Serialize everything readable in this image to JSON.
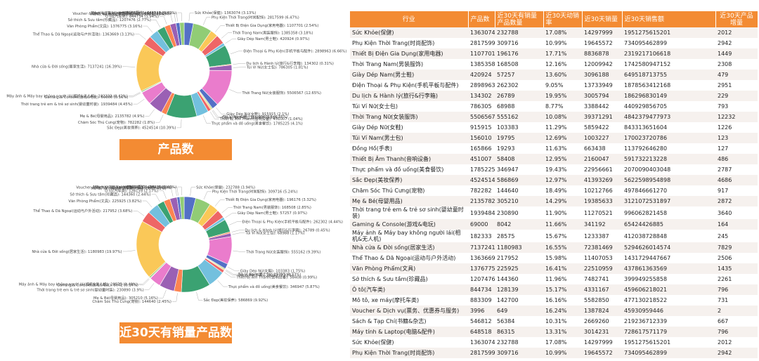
{
  "colors": [
    "#5470C6",
    "#91CC75",
    "#FAC858",
    "#EE6666",
    "#73C0DE",
    "#3BA272",
    "#FC8452",
    "#9A60B4",
    "#EA7CCC"
  ],
  "banners": {
    "chart1": "产品数",
    "chart2": "近30天有销量产品数"
  },
  "chart_data": [
    {
      "type": "pie",
      "title": "产品数",
      "slices": [
        {
          "label": "Sức Khỏe(保健)",
          "value": 1363074,
          "pct": "3.13%"
        },
        {
          "label": "Phụ Kiện Thời Trang(时尚配饰)",
          "value": 2817599,
          "pct": "6.47%"
        },
        {
          "label": "Thiết Bị Điện Gia Dụng(家用电器)",
          "value": 1107701,
          "pct": "2.54%"
        },
        {
          "label": "Thời Trang Nam(男装服饰)",
          "value": 1385358,
          "pct": "3.18%"
        },
        {
          "label": "Giày Dép Nam(男士鞋)",
          "value": 420924,
          "pct": "0.97%"
        },
        {
          "label": "Điện Thoại & Phụ Kiện(手机平板与配件)",
          "value": 2898963,
          "pct": "6.66%"
        },
        {
          "label": "Du lịch & Hành lý(旅行&行李箱)",
          "value": 134302,
          "pct": "0.31%"
        },
        {
          "label": "Túi Ví Nữ(女士包)",
          "value": 786305,
          "pct": "1.81%"
        },
        {
          "label": "Thời Trang Nữ(女装服饰)",
          "value": 5506567,
          "pct": "12.65%"
        },
        {
          "label": "Giày Dép Nữ(女鞋)",
          "value": 915915,
          "pct": "2.1%"
        },
        {
          "label": "Túi Ví Nam(男士包)",
          "value": 156010,
          "pct": "0.36%"
        },
        {
          "label": "Đồng Hồ(手表)",
          "value": 165866,
          "pct": "0.38%"
        },
        {
          "label": "Thiết Bị Âm Thanh(音响设备)",
          "value": 451007,
          "pct": "1.04%"
        },
        {
          "label": "Thực phẩm và đồ uống(美食餐饮)",
          "value": 1785225,
          "pct": "4.1%"
        },
        {
          "label": "Sắc Đẹp(美妆保养)",
          "value": 4524514,
          "pct": "10.39%"
        },
        {
          "label": "Chăm Sóc Thú Cưng(宠物)",
          "value": 782282,
          "pct": "1.8%"
        },
        {
          "label": "Mẹ & Bé(母婴用品)",
          "value": 2135782,
          "pct": "4.9%"
        },
        {
          "label": "Thời trang trẻ em & trẻ sơ sinh(婴幼童时装)",
          "value": 1939484,
          "pct": "4.45%"
        },
        {
          "label": "Gaming & Console(游戏&电玩)",
          "value": 69000,
          "pct": "0.16%"
        },
        {
          "label": "Máy ảnh & Máy bay không người lái(相机&无人机)",
          "value": 182333,
          "pct": "0.42%"
        },
        {
          "label": "Nhà cửa & Đời sống(居家生活)",
          "value": 7137241,
          "pct": "16.39%"
        },
        {
          "label": "Thể Thao & Dã Ngoại(运动与户外活动)",
          "value": 1363669,
          "pct": "3.13%"
        },
        {
          "label": "Văn Phòng Phẩm(文具)",
          "value": 1376775,
          "pct": "3.16%"
        },
        {
          "label": "Sở thích & Sưu tầm(珍藏品)",
          "value": 1207476,
          "pct": "2.77%"
        },
        {
          "label": "Ô tô(汽车类)",
          "value": 844734,
          "pct": "1.94%"
        },
        {
          "label": "Mô tô, xe máy(摩托车类)",
          "value": 883309,
          "pct": "2.03%"
        },
        {
          "label": "Voucher & Dịch vụ(票务、优惠券与服务)",
          "value": 3996,
          "pct": "0.01%"
        },
        {
          "label": "Sách & Tạp Chí(书籍&杂志)",
          "value": 546812,
          "pct": "1.26%"
        },
        {
          "label": "Máy tính & Laptop(电脑&配件)",
          "value": 648518,
          "pct": "1.49%"
        }
      ]
    },
    {
      "type": "pie",
      "title": "近30天有销量产品数",
      "slices": [
        {
          "label": "Sức Khỏe(保健)",
          "value": 232788,
          "pct": "3.94%"
        },
        {
          "label": "Phụ Kiện Thời Trang(时尚配饰)",
          "value": 309716,
          "pct": "5.24%"
        },
        {
          "label": "Thiết Bị Điện Gia Dụng(家用电器)",
          "value": 196176,
          "pct": "3.32%"
        },
        {
          "label": "Thời Trang Nam(男装服饰)",
          "value": 168508,
          "pct": "2.85%"
        },
        {
          "label": "Giày Dép Nam(男士鞋)",
          "value": 57257,
          "pct": "0.97%"
        },
        {
          "label": "Điện Thoại & Phụ Kiện(手机平板与配件)",
          "value": 262302,
          "pct": "4.44%"
        },
        {
          "label": "Du lịch & Hành lý(旅行&行李箱)",
          "value": 26789,
          "pct": "0.45%"
        },
        {
          "label": "Túi Ví Nữ(女士包)",
          "value": 68988,
          "pct": "1.17%"
        },
        {
          "label": "Thời Trang Nữ(女装服饰)",
          "value": 555162,
          "pct": "9.39%"
        },
        {
          "label": "Giày Dép Nữ(女鞋)",
          "value": 103383,
          "pct": "1.75%"
        },
        {
          "label": "Túi Ví Nam(男士包)",
          "value": 19795,
          "pct": "0.33%"
        },
        {
          "label": "Đồng Hồ(手表)",
          "value": 19293,
          "pct": "0.33%"
        },
        {
          "label": "Thiết Bị Âm Thanh(音响设备)",
          "value": 58408,
          "pct": "0.99%"
        },
        {
          "label": "Thực phẩm và đồ uống(美食餐饮)",
          "value": 346947,
          "pct": "5.87%"
        },
        {
          "label": "Sắc Đẹp(美妆保养)",
          "value": 586869,
          "pct": "9.92%"
        },
        {
          "label": "Chăm Sóc Thú Cưng(宠物)",
          "value": 144640,
          "pct": "2.45%"
        },
        {
          "label": "Mẹ & Bé(母婴用品)",
          "value": 305210,
          "pct": "5.16%"
        },
        {
          "label": "Thời trang trẻ em & trẻ sơ sinh(婴幼童时装)",
          "value": 230890,
          "pct": "3.9%"
        },
        {
          "label": "Gaming & Console(游戏&电玩)",
          "value": 8042,
          "pct": "0.14%"
        },
        {
          "label": "Máy ảnh & Máy bay không người lái(相机&无人机)",
          "value": 28575,
          "pct": "0.48%"
        },
        {
          "label": "Nhà cửa & Đời sống(居家生活)",
          "value": 1180983,
          "pct": "19.97%"
        },
        {
          "label": "Thể Thao & Dã Ngoại(运动与户外活动)",
          "value": 217952,
          "pct": "3.68%"
        },
        {
          "label": "Văn Phòng Phẩm(文具)",
          "value": 225925,
          "pct": "3.82%"
        },
        {
          "label": "Sở thích & Sưu tầm(珍藏品)",
          "value": 144360,
          "pct": "2.44%"
        },
        {
          "label": "Ô tô(汽车类)",
          "value": 128139,
          "pct": "2.17%"
        },
        {
          "label": "Mô tô, xe máy(摩托车类)",
          "value": 142700,
          "pct": "2.41%"
        },
        {
          "label": "Voucher & Dịch vụ(票务、优惠券与服务)",
          "value": 649,
          "pct": "0.01%"
        },
        {
          "label": "Sách & Tạp Chí(书籍&杂志)",
          "value": 56384,
          "pct": "0.95%"
        },
        {
          "label": "Máy tính & Laptop(电脑&配件)",
          "value": 86315,
          "pct": "1.46%"
        }
      ]
    },
    {
      "type": "table",
      "columns": [
        "行业",
        "产品数",
        "近30天有销量产品数量",
        "近30天动销率",
        "近30天销量",
        "近30天销售额",
        "近30天产品增量"
      ],
      "rows": [
        [
          "Sức Khỏe(保健)",
          "1363074",
          "232788",
          "17.08%",
          "14297999",
          "1951275615201",
          "2012"
        ],
        [
          "Phụ Kiện Thời Trang(时尚配饰)",
          "2817599",
          "309716",
          "10.99%",
          "19645572",
          "734095462899",
          "2942"
        ],
        [
          "Thiết Bị Điện Gia Dụng(家用电器)",
          "1107701",
          "196176",
          "17.71%",
          "8836878",
          "2319217106618",
          "1449"
        ],
        [
          "Thời Trang Nam(男装服饰)",
          "1385358",
          "168508",
          "12.16%",
          "12009942",
          "1742580947152",
          "2308"
        ],
        [
          "Giày Dép Nam(男士鞋)",
          "420924",
          "57257",
          "13.60%",
          "3096188",
          "649518713755",
          "479"
        ],
        [
          "Điện Thoại & Phụ Kiện(手机平板与配件)",
          "2898963",
          "262302",
          "9.05%",
          "13733949",
          "1878563412168",
          "2951"
        ],
        [
          "Du lịch & Hành lý(旅行&行李箱)",
          "134302",
          "26789",
          "19.95%",
          "3005794",
          "186296830149",
          "229"
        ],
        [
          "Túi Ví Nữ(女士包)",
          "786305",
          "68988",
          "8.77%",
          "3388442",
          "440929856705",
          "793"
        ],
        [
          "Thời Trang Nữ(女装服饰)",
          "5506567",
          "555162",
          "10.08%",
          "39371291",
          "4842379477973",
          "12232"
        ],
        [
          "Giày Dép Nữ(女鞋)",
          "915915",
          "103383",
          "11.29%",
          "5859422",
          "843313651604",
          "1226"
        ],
        [
          "Túi Ví Nam(男士包)",
          "156010",
          "19795",
          "12.69%",
          "1003227",
          "170023720786",
          "123"
        ],
        [
          "Đồng Hồ(手表)",
          "165866",
          "19293",
          "11.63%",
          "663438",
          "113792646280",
          "127"
        ],
        [
          "Thiết Bị Âm Thanh(音响设备)",
          "451007",
          "58408",
          "12.95%",
          "2160047",
          "591732213228",
          "486"
        ],
        [
          "Thực phẩm và đồ uống(美食餐饮)",
          "1785225",
          "346947",
          "19.43%",
          "22956661",
          "2070090403048",
          "2787"
        ],
        [
          "Sắc Đẹp(美妆保养)",
          "4524514",
          "586869",
          "12.97%",
          "41393269",
          "5622598954898",
          "4686"
        ],
        [
          "Chăm Sóc Thú Cưng(宠物)",
          "782282",
          "144640",
          "18.49%",
          "10212766",
          "497846661270",
          "917"
        ],
        [
          "Mẹ & Bé(母婴用品)",
          "2135782",
          "305210",
          "14.29%",
          "19385633",
          "3121072531897",
          "2872"
        ],
        [
          "Thời trang trẻ em & trẻ sơ sinh(婴幼童时装)",
          "1939484",
          "230890",
          "11.90%",
          "11270521",
          "996062821458",
          "3640"
        ],
        [
          "Gaming & Console(游戏&电玩)",
          "69000",
          "8042",
          "11.66%",
          "341192",
          "65424426885",
          "164"
        ],
        [
          "Máy ảnh & Máy bay không người lái(相机&无人机)",
          "182333",
          "28575",
          "15.67%",
          "1233387",
          "412038728848",
          "245"
        ],
        [
          "Nhà cửa & Đời sống(居家生活)",
          "7137241",
          "1180983",
          "16.55%",
          "72381469",
          "5294626014574",
          "7829"
        ],
        [
          "Thể Thao & Dã Ngoại(运动与户外活动)",
          "1363669",
          "217952",
          "15.98%",
          "11407053",
          "1431729447667",
          "2506"
        ],
        [
          "Văn Phòng Phẩm(文具)",
          "1376775",
          "225925",
          "16.41%",
          "22510959",
          "437861363569",
          "1435"
        ],
        [
          "Sở thích & Sưu tầm(珍藏品)",
          "1207476",
          "144360",
          "11.96%",
          "7482741",
          "399949255858",
          "2261"
        ],
        [
          "Ô tô(汽车类)",
          "844734",
          "128139",
          "15.17%",
          "4331167",
          "459606218021",
          "796"
        ],
        [
          "Mô tô, xe máy(摩托车类)",
          "883309",
          "142700",
          "16.16%",
          "5582850",
          "477130218522",
          "731"
        ],
        [
          "Voucher & Dịch vụ(票务、优惠券与服务)",
          "3996",
          "649",
          "16.24%",
          "1387824",
          "45930959446",
          "2"
        ],
        [
          "Sách & Tạp Chí(书籍&杂志)",
          "546812",
          "56384",
          "10.31%",
          "2669260",
          "219236712339",
          "667"
        ],
        [
          "Máy tính & Laptop(电脑&配件)",
          "648518",
          "86315",
          "13.31%",
          "3014231",
          "728617571179",
          "796"
        ],
        [
          "Sức Khỏe(保健)",
          "1363074",
          "232788",
          "17.08%",
          "14297999",
          "1951275615201",
          "2012"
        ],
        [
          "Phụ Kiện Thời Trang(时尚配饰)",
          "2817599",
          "309716",
          "10.99%",
          "19645572",
          "734095462899",
          "2942"
        ]
      ]
    }
  ]
}
